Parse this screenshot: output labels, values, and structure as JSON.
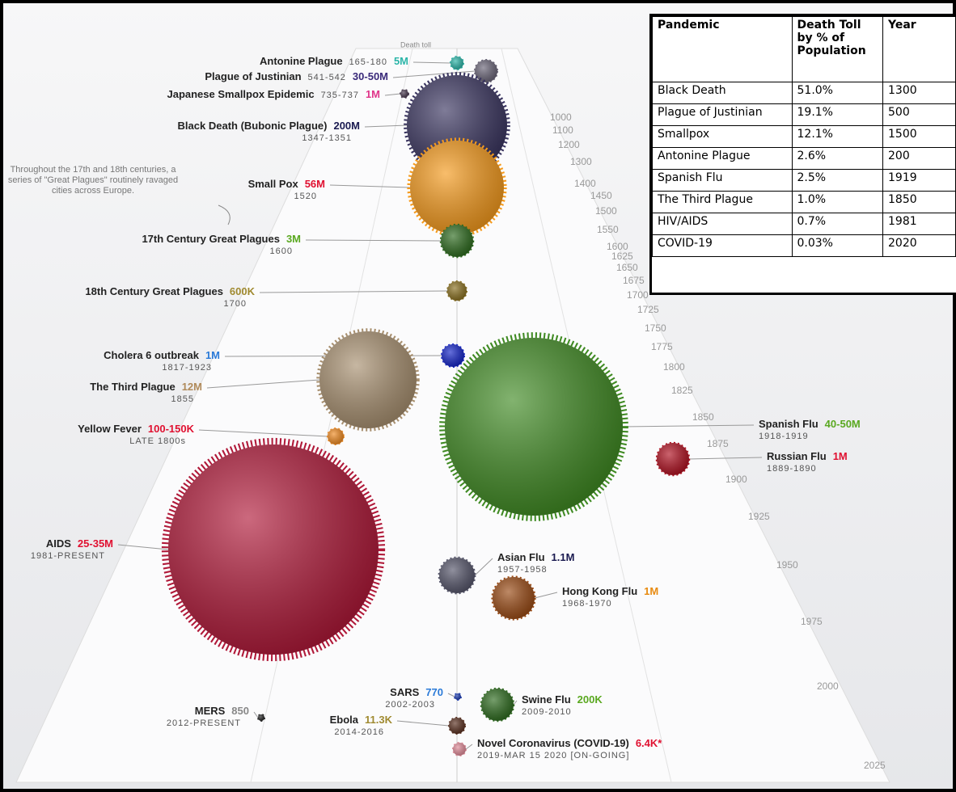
{
  "header": {
    "death_toll_label": "Death toll"
  },
  "note": "Throughout the 17th and 18th centuries, a series of \"Great Plagues\" routinely ravaged cities across Europe.",
  "pandemics": [
    {
      "name": "Antonine Plague",
      "years": "165-180",
      "toll": "5M",
      "toll_color": "#2bb5a8"
    },
    {
      "name": "Plague of Justinian",
      "years": "541-542",
      "toll": "30-50M",
      "toll_color": "#3a2a7a"
    },
    {
      "name": "Japanese Smallpox Epidemic",
      "years": "735-737",
      "toll": "1M",
      "toll_color": "#e0358a"
    },
    {
      "name": "Black Death (Bubonic Plague)",
      "years": "1347-1351",
      "toll": "200M",
      "toll_color": "#1a1a50"
    },
    {
      "name": "Small Pox",
      "years": "1520",
      "toll": "56M",
      "toll_color": "#e01030"
    },
    {
      "name": "17th Century Great Plagues",
      "years": "1600",
      "toll": "3M",
      "toll_color": "#5aa820"
    },
    {
      "name": "18th Century Great Plagues",
      "years": "1700",
      "toll": "600K",
      "toll_color": "#a08a30"
    },
    {
      "name": "Cholera 6 outbreak",
      "years": "1817-1923",
      "toll": "1M",
      "toll_color": "#2a7ad8"
    },
    {
      "name": "The Third Plague",
      "years": "1855",
      "toll": "12M",
      "toll_color": "#b08a5a"
    },
    {
      "name": "Yellow Fever",
      "years": "LATE 1800s",
      "toll": "100-150K",
      "toll_color": "#e01030"
    },
    {
      "name": "Spanish Flu",
      "years": "1918-1919",
      "toll": "40-50M",
      "toll_color": "#5aa820"
    },
    {
      "name": "Russian Flu",
      "years": "1889-1890",
      "toll": "1M",
      "toll_color": "#e01030"
    },
    {
      "name": "AIDS",
      "years": "1981-PRESENT",
      "toll": "25-35M",
      "toll_color": "#e01030"
    },
    {
      "name": "Asian Flu",
      "years": "1957-1958",
      "toll": "1.1M",
      "toll_color": "#1a1a50"
    },
    {
      "name": "Hong Kong Flu",
      "years": "1968-1970",
      "toll": "1M",
      "toll_color": "#e88a10"
    },
    {
      "name": "SARS",
      "years": "2002-2003",
      "toll": "770",
      "toll_color": "#2a7ad8"
    },
    {
      "name": "Swine Flu",
      "years": "2009-2010",
      "toll": "200K",
      "toll_color": "#5aa820"
    },
    {
      "name": "MERS",
      "years": "2012-PRESENT",
      "toll": "850",
      "toll_color": "#888888"
    },
    {
      "name": "Ebola",
      "years": "2014-2016",
      "toll": "11.3K",
      "toll_color": "#a08a30"
    },
    {
      "name": "Novel Coronavirus (COVID-19)",
      "years": "2019-MAR 15 2020 [ON-GOING]",
      "toll": "6.4K*",
      "toll_color": "#e01030"
    }
  ],
  "timeline_years": [
    "1000",
    "1100",
    "1200",
    "1300",
    "1400",
    "1450",
    "1500",
    "1550",
    "1600",
    "1625",
    "1650",
    "1675",
    "1700",
    "1725",
    "1750",
    "1775",
    "1800",
    "1825",
    "1850",
    "1875",
    "1900",
    "1925",
    "1950",
    "1975",
    "2000",
    "2025"
  ],
  "table": {
    "header": [
      "Pandemic",
      "Death Toll by % of Population",
      "Year"
    ],
    "rows": [
      [
        "Black Death",
        "51.0%",
        "1300"
      ],
      [
        "Plague of Justinian",
        "19.1%",
        "500"
      ],
      [
        "Smallpox",
        "12.1%",
        "1500"
      ],
      [
        "Antonine Plague",
        "2.6%",
        "200"
      ],
      [
        "Spanish Flu",
        "2.5%",
        "1919"
      ],
      [
        "The Third Plague",
        "1.0%",
        "1850"
      ],
      [
        "HIV/AIDS",
        "0.7%",
        "1981"
      ],
      [
        "COVID-19",
        "0.03%",
        "2020"
      ]
    ]
  }
}
